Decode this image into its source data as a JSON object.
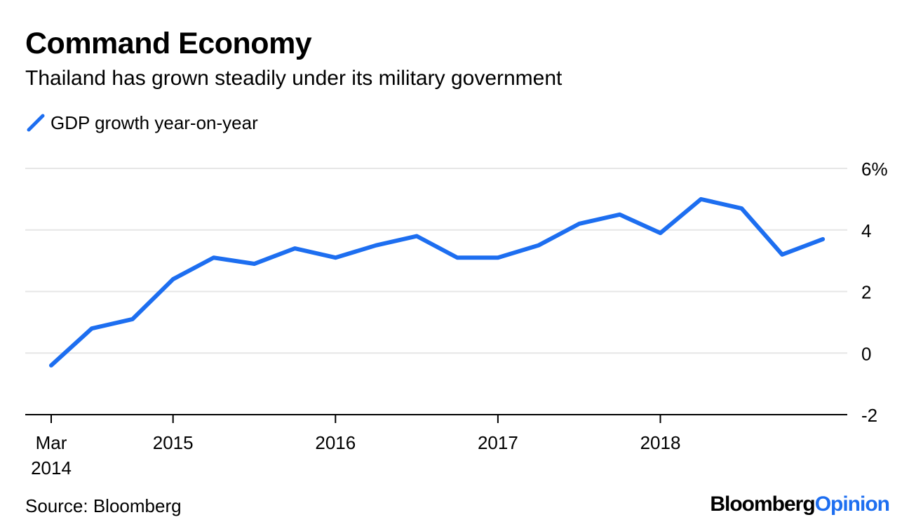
{
  "header": {
    "title": "Command Economy",
    "subtitle": "Thailand has grown steadily under its military government"
  },
  "legend": {
    "label": "GDP growth year-on-year"
  },
  "footer": {
    "source": "Source: Bloomberg",
    "logo_part1": "Bloomberg",
    "logo_part2": "Opinion"
  },
  "colors": {
    "series": "#1d6ef0",
    "grid": "#e6e6e6",
    "axis": "#000000",
    "logo_accent": "#1d6ef0"
  },
  "chart_data": {
    "type": "line",
    "title": "Command Economy",
    "subtitle": "Thailand has grown steadily under its military government",
    "xlabel": "",
    "ylabel": "",
    "ylim": [
      -2,
      6
    ],
    "y_ticks": [
      6,
      4,
      2,
      0,
      -2
    ],
    "y_tick_labels": [
      "6%",
      "4",
      "2",
      "0",
      "-2"
    ],
    "y_axis_position": "right",
    "grid": true,
    "legend_position": "top-left",
    "x_ticks": [
      {
        "index": 0,
        "label": [
          "Mar",
          "2014"
        ]
      },
      {
        "index": 3,
        "label": [
          "2015"
        ]
      },
      {
        "index": 7,
        "label": [
          "2016"
        ]
      },
      {
        "index": 11,
        "label": [
          "2017"
        ]
      },
      {
        "index": 15,
        "label": [
          "2018"
        ]
      }
    ],
    "series": [
      {
        "name": "GDP growth year-on-year",
        "color": "#1d6ef0",
        "x": [
          "2014-03",
          "2014-06",
          "2014-09",
          "2014-12",
          "2015-03",
          "2015-06",
          "2015-09",
          "2015-12",
          "2016-03",
          "2016-06",
          "2016-09",
          "2016-12",
          "2017-03",
          "2017-06",
          "2017-09",
          "2017-12",
          "2018-03",
          "2018-06",
          "2018-09",
          "2018-12"
        ],
        "values": [
          -0.4,
          0.8,
          1.1,
          2.4,
          3.1,
          2.9,
          3.4,
          3.1,
          3.5,
          3.8,
          3.1,
          3.1,
          3.5,
          4.2,
          4.5,
          3.9,
          5.0,
          4.7,
          3.2,
          3.7
        ]
      }
    ]
  }
}
